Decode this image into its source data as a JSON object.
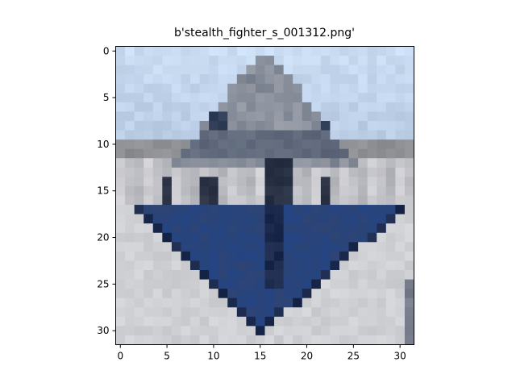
{
  "title": "b'stealth_fighter_s_001312.png'",
  "axes": {
    "x_ticks": [
      "0",
      "5",
      "10",
      "15",
      "20",
      "25",
      "30"
    ],
    "y_ticks": [
      "0",
      "5",
      "10",
      "15",
      "20",
      "25",
      "30"
    ]
  },
  "image": {
    "description_colors": {
      "sky_top": "#c9dcf2",
      "sky_low": "#b9cbe3",
      "aircraft_grey": "#7a8290",
      "aircraft_dark": "#2f3d56",
      "wing_blue": "#2d4d8b",
      "wing_dark": "#1b2a4c",
      "ground": "#cfd0d3",
      "hangar_band": "#8e8f92"
    }
  }
}
